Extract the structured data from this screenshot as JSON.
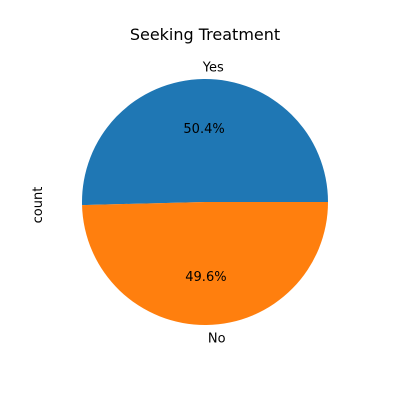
{
  "chart_data": {
    "type": "pie",
    "title": "Seeking Treatment",
    "ylabel": "count",
    "slices": [
      {
        "label": "Yes",
        "percent": 50.4,
        "percent_label": "50.4%",
        "color": "#1f77b4"
      },
      {
        "label": "No",
        "percent": 49.6,
        "percent_label": "49.6%",
        "color": "#ff7f0e"
      }
    ],
    "start_angle_deg": 0,
    "direction": "counterclockwise",
    "legend": "none"
  }
}
